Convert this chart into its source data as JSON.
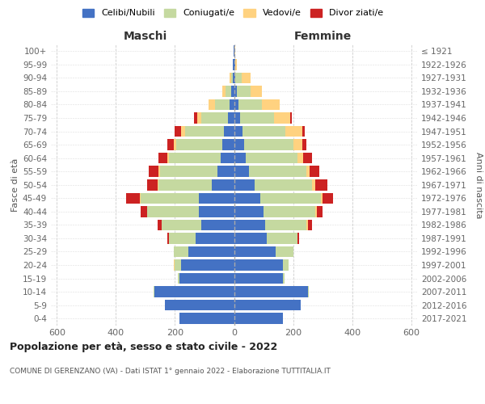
{
  "age_groups": [
    "0-4",
    "5-9",
    "10-14",
    "15-19",
    "20-24",
    "25-29",
    "30-34",
    "35-39",
    "40-44",
    "45-49",
    "50-54",
    "55-59",
    "60-64",
    "65-69",
    "70-74",
    "75-79",
    "80-84",
    "85-89",
    "90-94",
    "95-99",
    "100+"
  ],
  "birth_years": [
    "2017-2021",
    "2012-2016",
    "2007-2011",
    "2002-2006",
    "1997-2001",
    "1992-1996",
    "1987-1991",
    "1982-1986",
    "1977-1981",
    "1972-1976",
    "1967-1971",
    "1962-1966",
    "1957-1961",
    "1952-1956",
    "1947-1951",
    "1942-1946",
    "1937-1941",
    "1932-1936",
    "1927-1931",
    "1922-1926",
    "≤ 1921"
  ],
  "males": {
    "celibe": [
      185,
      235,
      270,
      185,
      180,
      155,
      130,
      110,
      120,
      120,
      75,
      55,
      45,
      40,
      35,
      20,
      15,
      10,
      5,
      3,
      2
    ],
    "coniugato": [
      0,
      0,
      2,
      5,
      20,
      50,
      90,
      135,
      175,
      195,
      180,
      195,
      175,
      155,
      130,
      90,
      50,
      20,
      5,
      0,
      0
    ],
    "vedovo": [
      0,
      0,
      0,
      0,
      5,
      0,
      0,
      0,
      0,
      5,
      5,
      5,
      5,
      10,
      15,
      15,
      20,
      10,
      5,
      0,
      0
    ],
    "divorziato": [
      0,
      0,
      0,
      0,
      0,
      0,
      5,
      15,
      20,
      45,
      35,
      35,
      30,
      20,
      20,
      10,
      0,
      0,
      0,
      0,
      0
    ]
  },
  "females": {
    "nubile": [
      165,
      225,
      250,
      165,
      165,
      140,
      110,
      105,
      100,
      90,
      70,
      50,
      40,
      35,
      30,
      20,
      15,
      10,
      5,
      3,
      2
    ],
    "coniugata": [
      0,
      0,
      2,
      5,
      20,
      60,
      105,
      140,
      175,
      205,
      195,
      195,
      175,
      165,
      145,
      115,
      80,
      45,
      20,
      2,
      0
    ],
    "vedova": [
      0,
      0,
      0,
      0,
      0,
      0,
      0,
      5,
      5,
      5,
      10,
      10,
      20,
      30,
      55,
      55,
      60,
      40,
      30,
      5,
      2
    ],
    "divorziata": [
      0,
      0,
      0,
      0,
      0,
      0,
      5,
      15,
      20,
      35,
      40,
      35,
      30,
      15,
      10,
      5,
      0,
      0,
      0,
      0,
      0
    ]
  },
  "colors": {
    "celibe": "#4472c4",
    "coniugato": "#c5d9a0",
    "vedovo": "#ffd280",
    "divorziato": "#cc2222"
  },
  "title": "Popolazione per età, sesso e stato civile - 2022",
  "subtitle": "COMUNE DI GERENZANO (VA) - Dati ISTAT 1° gennaio 2022 - Elaborazione TUTTITALIA.IT",
  "label_maschi": "Maschi",
  "label_femmine": "Femmine",
  "ylabel_left": "Fasce di età",
  "ylabel_right": "Anni di nascita",
  "xlim": 620,
  "background_color": "#ffffff"
}
